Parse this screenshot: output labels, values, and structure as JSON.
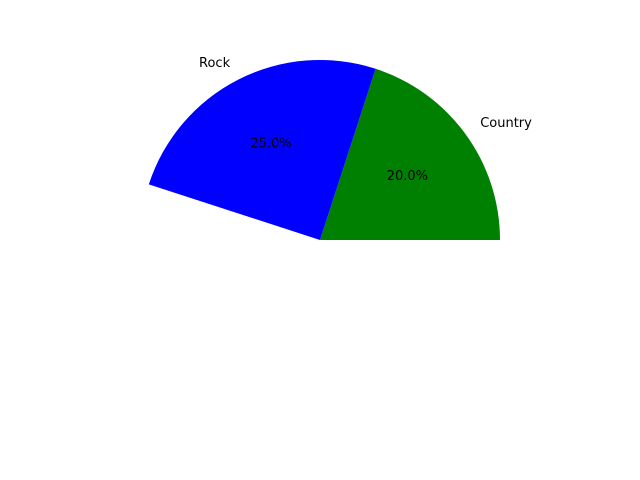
{
  "chart_data": {
    "type": "pie",
    "slices": [
      {
        "label": "Country",
        "percent_label": "20.0%",
        "value": 20.0,
        "color": "#008000"
      },
      {
        "label": "Rock",
        "percent_label": "25.0%",
        "value": 25.0,
        "color": "#0000ff"
      }
    ],
    "start_angle_deg": 0,
    "direction": "counterclockwise"
  }
}
